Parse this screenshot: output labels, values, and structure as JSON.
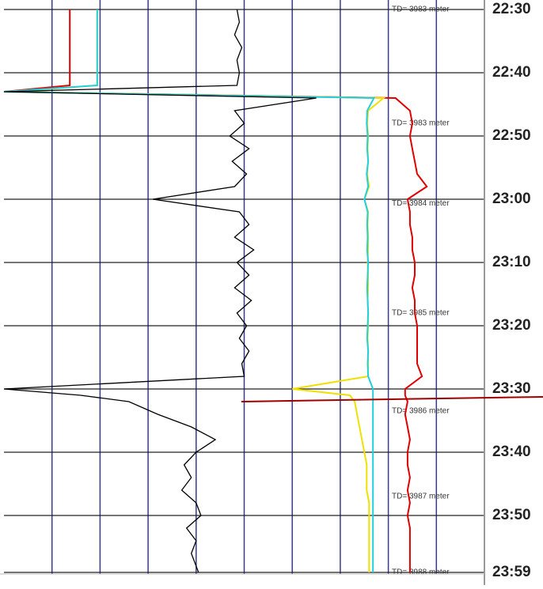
{
  "chart_data": {
    "type": "log",
    "x": [
      0,
      2,
      4,
      6,
      8,
      10,
      12,
      13,
      14,
      16,
      18,
      20,
      22,
      24,
      26,
      28,
      30,
      32,
      34,
      36,
      38,
      40,
      42,
      44,
      46,
      48,
      50,
      52,
      54,
      56,
      58,
      60,
      61,
      62,
      64,
      66,
      68,
      70,
      72,
      74,
      76,
      78,
      80,
      82,
      84,
      86,
      88,
      89
    ],
    "xlim": [
      0,
      89
    ],
    "xticks": [
      {
        "value": 0,
        "label": "22:30"
      },
      {
        "value": 10,
        "label": "22:40"
      },
      {
        "value": 20,
        "label": "22:50"
      },
      {
        "value": 30,
        "label": "23:00"
      },
      {
        "value": 40,
        "label": "23:10"
      },
      {
        "value": 50,
        "label": "23:20"
      },
      {
        "value": 60,
        "label": "23:30"
      },
      {
        "value": 70,
        "label": "23:40"
      },
      {
        "value": 80,
        "label": "23:50"
      },
      {
        "value": 89,
        "label": "23:59"
      }
    ],
    "ylim": [
      0,
      10
    ],
    "yticks": [
      1,
      2,
      3,
      4,
      5,
      6,
      7,
      8,
      9
    ],
    "grid": true,
    "series": [
      {
        "color": "#e00000",
        "values": [
          1.37,
          1.37,
          1.37,
          1.37,
          1.37,
          1.37,
          1.37,
          0,
          8.15,
          8.45,
          8.5,
          8.45,
          8.5,
          8.55,
          8.6,
          8.8,
          8.4,
          8.45,
          8.45,
          8.5,
          8.5,
          8.55,
          8.55,
          8.5,
          8.55,
          8.55,
          8.6,
          8.6,
          8.6,
          8.6,
          8.7,
          8.35,
          8.35,
          8.4,
          8.35,
          8.4,
          8.45,
          8.4,
          8.4,
          8.45,
          8.4,
          8.45,
          8.4,
          8.45,
          8.45,
          8.45,
          8.45,
          8.45
        ]
      },
      {
        "color": "#f0e000",
        "values": [
          1.94,
          1.94,
          1.94,
          1.94,
          1.94,
          1.94,
          1.94,
          0.1,
          7.9,
          7.58,
          7.56,
          7.58,
          7.57,
          7.58,
          7.56,
          7.6,
          7.5,
          7.58,
          7.57,
          7.58,
          7.58,
          7.57,
          7.58,
          7.58,
          7.57,
          7.58,
          7.58,
          7.57,
          7.58,
          7.58,
          7.58,
          6.0,
          7.2,
          7.3,
          7.35,
          7.4,
          7.45,
          7.5,
          7.55,
          7.55,
          7.55,
          7.6,
          7.6,
          7.6,
          7.6,
          7.6,
          7.6,
          7.6
        ]
      },
      {
        "color": "#20d0e0",
        "values": [
          1.94,
          1.94,
          1.94,
          1.94,
          1.94,
          1.94,
          1.94,
          0,
          7.7,
          7.56,
          7.55,
          7.57,
          7.56,
          7.58,
          7.55,
          7.58,
          7.5,
          7.57,
          7.56,
          7.57,
          7.56,
          7.58,
          7.57,
          7.56,
          7.57,
          7.58,
          7.57,
          7.56,
          7.58,
          7.57,
          7.58,
          7.68,
          7.68,
          7.68,
          7.68,
          7.68,
          7.68,
          7.68,
          7.68,
          7.68,
          7.68,
          7.68,
          7.68,
          7.68,
          7.68,
          7.68,
          7.68,
          7.68
        ]
      },
      {
        "color": "#000000",
        "values": [
          4.85,
          4.9,
          4.8,
          4.95,
          4.85,
          4.9,
          4.85,
          0,
          6.5,
          4.8,
          5.0,
          4.7,
          5.1,
          4.75,
          5.05,
          4.8,
          3.1,
          4.9,
          5.1,
          4.8,
          5.2,
          4.85,
          5.1,
          4.8,
          5.15,
          4.85,
          5.05,
          4.9,
          5.1,
          4.95,
          5.0,
          0,
          1.6,
          2.6,
          3.2,
          3.9,
          4.4,
          4.0,
          3.75,
          3.9,
          3.7,
          4.0,
          4.1,
          3.8,
          4.0,
          3.9,
          4.0,
          4.05
        ]
      }
    ],
    "annotations": [
      {
        "text": "TD= 3983 meter",
        "x": 0
      },
      {
        "text": "TD= 3983 meter",
        "x": 18
      },
      {
        "text": "TD= 3984 meter",
        "x": 30.7
      },
      {
        "text": "TD= 3985 meter",
        "x": 48
      },
      {
        "text": "TD= 3986 meter",
        "x": 63.5
      },
      {
        "text": "TD= 3987 meter",
        "x": 77
      },
      {
        "text": "TD= 3988 meter",
        "x": 89
      }
    ]
  }
}
